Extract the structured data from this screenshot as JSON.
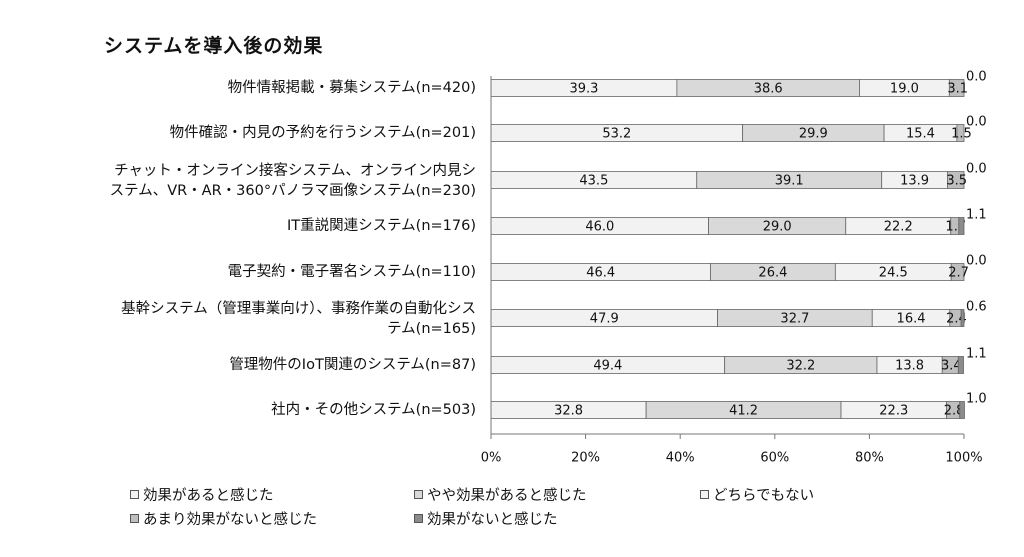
{
  "chart_data": {
    "type": "bar",
    "orientation": "horizontal",
    "stacked": "percent",
    "title": "システムを導入後の効果",
    "categories": [
      [
        "物件情報掲載・募集システム(n=420)"
      ],
      [
        "物件確認・内見の予約を行うシステム(n=201)"
      ],
      [
        "チャット・オンライン接客システム、オンライン内見シ",
        "ステム、VR・AR・360°パノラマ画像システム(n=230)"
      ],
      [
        "IT重説関連システム(n=176)"
      ],
      [
        "電子契約・電子署名システム(n=110)"
      ],
      [
        "基幹システム（管理事業向け）、事務作業の自動化シス",
        "テム(n=165)"
      ],
      [
        "管理物件のIoT関連のシステム(n=87)"
      ],
      [
        "社内・その他システム(n=503)"
      ]
    ],
    "series": [
      {
        "name": "効果があると感じた",
        "values": [
          39.3,
          53.2,
          43.5,
          46.0,
          46.4,
          47.9,
          49.4,
          32.8
        ]
      },
      {
        "name": "やや効果があると感じた",
        "values": [
          38.6,
          29.9,
          39.1,
          29.0,
          26.4,
          32.7,
          32.2,
          41.2
        ]
      },
      {
        "name": "どちらでもない",
        "values": [
          19.0,
          15.4,
          13.9,
          22.2,
          24.5,
          16.4,
          13.8,
          22.3
        ]
      },
      {
        "name": "あまり効果がないと感じた",
        "values": [
          3.1,
          1.5,
          3.5,
          1.7,
          2.7,
          2.4,
          3.4,
          2.8
        ]
      },
      {
        "name": "効果がないと感じた",
        "values": [
          0.0,
          0.0,
          0.0,
          1.1,
          0.0,
          0.6,
          1.1,
          1.0
        ]
      }
    ],
    "value_labels": [
      [
        "39.3",
        "38.6",
        "19.0",
        "3.1",
        "0.0"
      ],
      [
        "53.2",
        "29.9",
        "15.4",
        "1.5",
        "0.0"
      ],
      [
        "43.5",
        "39.1",
        "13.9",
        "3.5",
        "0.0"
      ],
      [
        "46.0",
        "29.0",
        "22.2",
        "1.7",
        "1.1"
      ],
      [
        "46.4",
        "26.4",
        "24.5",
        "2.7",
        "0.0"
      ],
      [
        "47.9",
        "32.7",
        "16.4",
        "2.4",
        "0.6"
      ],
      [
        "49.4",
        "32.2",
        "13.8",
        "3.4",
        "1.1"
      ],
      [
        "32.8",
        "41.2",
        "22.3",
        "2.8",
        "1.0"
      ]
    ],
    "x_ticks": [
      "0%",
      "20%",
      "40%",
      "60%",
      "80%",
      "100%"
    ],
    "xlim": [
      0,
      100
    ],
    "grid": false,
    "legend_position": "bottom",
    "colors": [
      "#f2f2f2",
      "#d9d9d9",
      "#f2f2f2",
      "#bfbfbf",
      "#8c8c8c"
    ]
  }
}
